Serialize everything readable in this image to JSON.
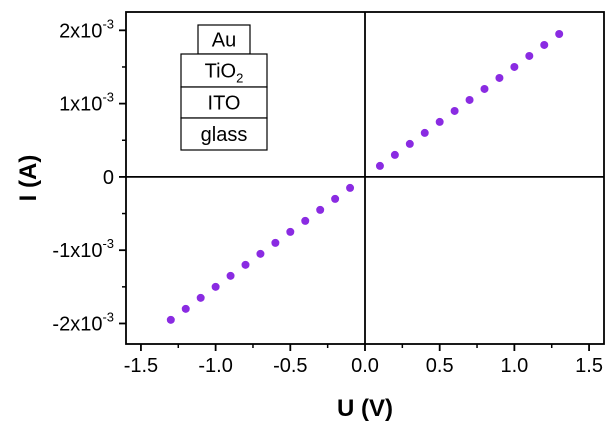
{
  "chart_data": {
    "type": "scatter",
    "xlabel": "U (V)",
    "ylabel": "I (A)",
    "xlim": [
      -1.6,
      1.6
    ],
    "ylim": [
      -0.00228,
      0.00225
    ],
    "x_ticks": [
      -1.5,
      -1.0,
      -0.5,
      0.0,
      0.5,
      1.0,
      1.5
    ],
    "x_tick_labels": [
      "-1.5",
      "-1.0",
      "-0.5",
      "0.0",
      "0.5",
      "1.0",
      "1.5"
    ],
    "y_ticks": [
      {
        "value": 0.002,
        "mantissa": "2x10",
        "exponent": "-3"
      },
      {
        "value": 0.001,
        "mantissa": "1x10",
        "exponent": "-3"
      },
      {
        "value": 0,
        "mantissa": "0",
        "exponent": ""
      },
      {
        "value": -0.001,
        "mantissa": "-1x10",
        "exponent": "-3"
      },
      {
        "value": -0.002,
        "mantissa": "-2x10",
        "exponent": "-3"
      }
    ],
    "grid": false,
    "zero_lines": true,
    "marker_color": "#8a2be2",
    "series": [
      {
        "x": [
          -1.3,
          -1.2,
          -1.1,
          -1.0,
          -0.9,
          -0.8,
          -0.7,
          -0.6,
          -0.5,
          -0.4,
          -0.3,
          -0.2,
          -0.1,
          0.1,
          0.2,
          0.3,
          0.4,
          0.5,
          0.6,
          0.7,
          0.8,
          0.9,
          1.0,
          1.1,
          1.2,
          1.3
        ],
        "y": [
          -0.00195,
          -0.0018,
          -0.00165,
          -0.0015,
          -0.00135,
          -0.0012,
          -0.00105,
          -0.0009,
          -0.00075,
          -0.0006,
          -0.00045,
          -0.0003,
          -0.00015,
          0.00015,
          0.0003,
          0.00045,
          0.0006,
          0.00075,
          0.0009,
          0.00105,
          0.0012,
          0.00135,
          0.0015,
          0.00165,
          0.0018,
          0.00195
        ]
      }
    ],
    "annotation_layers": [
      {
        "text": "Au",
        "sub": ""
      },
      {
        "text": "TiO",
        "sub": "2"
      },
      {
        "text": "ITO",
        "sub": ""
      },
      {
        "text": "glass",
        "sub": ""
      }
    ]
  }
}
